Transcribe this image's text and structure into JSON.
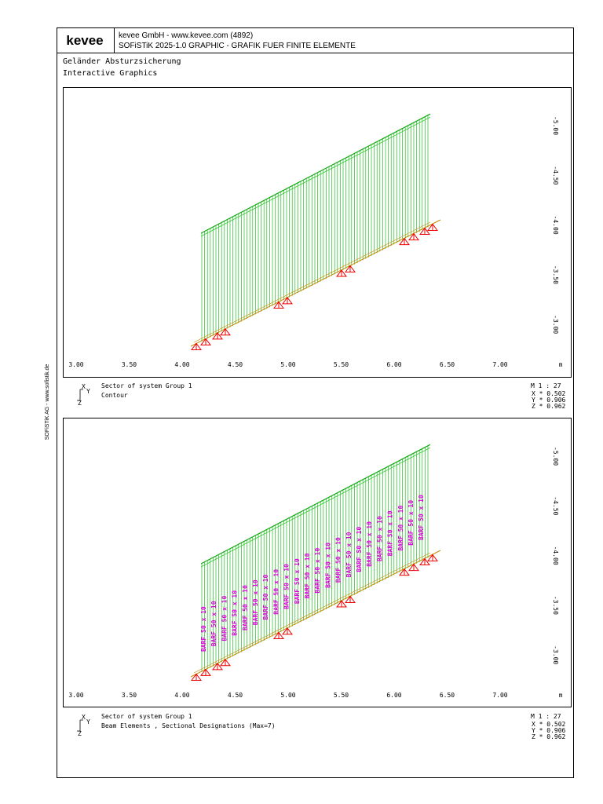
{
  "header": {
    "logo": "kevee",
    "line1": "kevee GmbH - www.kevee.com (4892)",
    "line2": "SOFiSTiK 2025-1.0   GRAPHIC - GRAFIK FUER FINITE ELEMENTE"
  },
  "title": {
    "line1": "Geländer Absturzsicherung",
    "line2": "Interactive Graphics"
  },
  "side_note": "SOFiSTiK AG - www.sofistik.de",
  "panels": [
    {
      "x_labels": [
        "3.00",
        "3.50",
        "4.00",
        "4.50",
        "5.00",
        "5.50",
        "6.00",
        "6.50",
        "7.00"
      ],
      "x_unit": "m",
      "y_labels": [
        "-5.00",
        "-4.50",
        "-4.00",
        "-3.50",
        "-3.00"
      ],
      "axis_icon": {
        "x": "X",
        "y": "Y",
        "z": "Z"
      },
      "footer": {
        "sector": "Sector of system Group 1",
        "description": "Contour",
        "scale": "M 1 : 27",
        "factors": [
          "X * 0.502",
          "Y * 0.906",
          "Z * 0.962"
        ]
      }
    },
    {
      "x_labels": [
        "3.00",
        "3.50",
        "4.00",
        "4.50",
        "5.00",
        "5.50",
        "6.00",
        "6.50",
        "7.00"
      ],
      "x_unit": "m",
      "y_labels": [
        "-5.00",
        "-4.50",
        "-4.00",
        "-3.50",
        "-3.00"
      ],
      "axis_icon": {
        "x": "X",
        "y": "Y",
        "z": "Z"
      },
      "footer": {
        "sector": "Sector of system Group 1",
        "description": "Beam Elements , Sectional Designations (Max=7)",
        "scale": "M 1 : 27",
        "factors": [
          "X * 0.502",
          "Y * 0.906",
          "Z * 0.962"
        ]
      },
      "beam_labels": [
        "BARF 50 x 10",
        "BARF 50 x 10",
        "BARF 50 x 10",
        "BARF 50 x 10",
        "BARF 50 x 10",
        "BARF 50 x 10",
        "BARF 50 x 10",
        "BARF 50 x 10",
        "BARF 50 x 10",
        "BARF 50 x 10",
        "BARF 50 x 10",
        "BARF 50 x 10",
        "BARF 50 x 10",
        "BARF 50 x 10",
        "BARF 50 x 10",
        "BARF 50 x 10",
        "BARF 50 x 10",
        "BARF 50 x 10",
        "BARF 50 x 10",
        "BARF 50 x 10",
        "BARF 50 x 10",
        "BARF 50 x 10"
      ]
    }
  ]
}
